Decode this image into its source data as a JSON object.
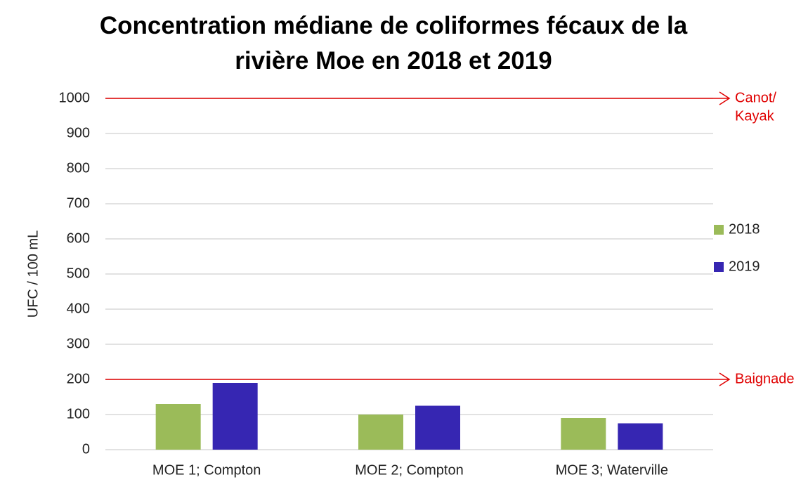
{
  "chart_data": {
    "type": "bar",
    "title": "Concentration médiane de coliformes fécaux de la rivière Moe en 2018 et 2019",
    "ylabel": "UFC / 100 mL",
    "categories": [
      "MOE 1; Compton",
      "MOE 2; Compton",
      "MOE 3; Waterville"
    ],
    "series": [
      {
        "name": "2018",
        "color": "#9bbb59",
        "values": [
          130,
          100,
          90
        ]
      },
      {
        "name": "2019",
        "color": "#3626b2",
        "values": [
          190,
          125,
          75
        ]
      }
    ],
    "ylim": [
      0,
      1000
    ],
    "yticks": [
      0,
      100,
      200,
      300,
      400,
      500,
      600,
      700,
      800,
      900,
      1000
    ],
    "grid": true,
    "legend": "right",
    "reference_lines": [
      {
        "value": 1000,
        "label": [
          "Canot/",
          "Kayak"
        ],
        "color": "#e00000"
      },
      {
        "value": 200,
        "label": [
          "Baignade"
        ],
        "color": "#e00000"
      }
    ]
  }
}
